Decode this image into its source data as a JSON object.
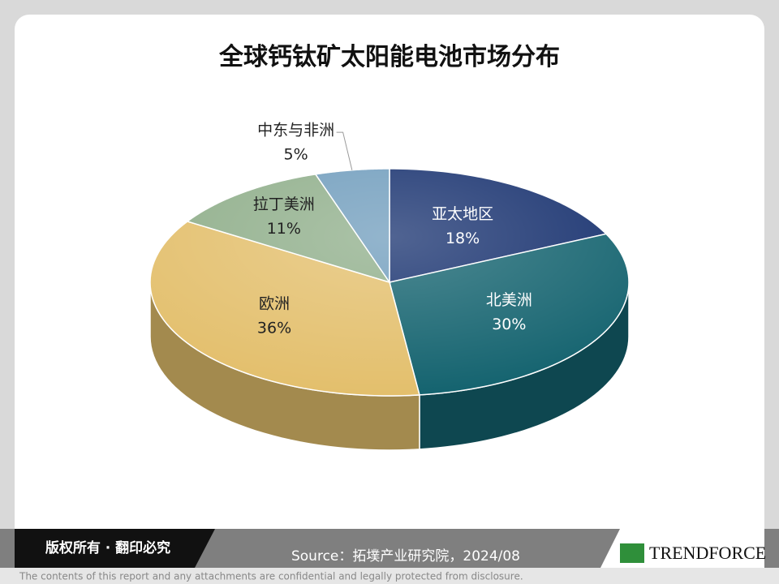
{
  "chart_data": {
    "type": "pie3d",
    "title": "全球钙钛矿太阳能电池市场分布",
    "categories": [
      "亚太地区",
      "北美洲",
      "欧洲",
      "拉丁美洲",
      "中东与非洲"
    ],
    "values": [
      18,
      30,
      36,
      11,
      5
    ],
    "value_labels": [
      "18%",
      "30%",
      "36%",
      "11%",
      "5%"
    ],
    "colors": [
      "#16306e",
      "#14636f",
      "#e3bf6c",
      "#8fae8a",
      "#6f9cbc"
    ]
  },
  "footer": {
    "copyright": "版权所有 · 翻印必究",
    "source": "Source：拓墣产业研究院，2024/08",
    "brand": "TRENDFORCE",
    "disclaimer": "The contents of this report and any attachments are confidential and legally protected from disclosure."
  }
}
